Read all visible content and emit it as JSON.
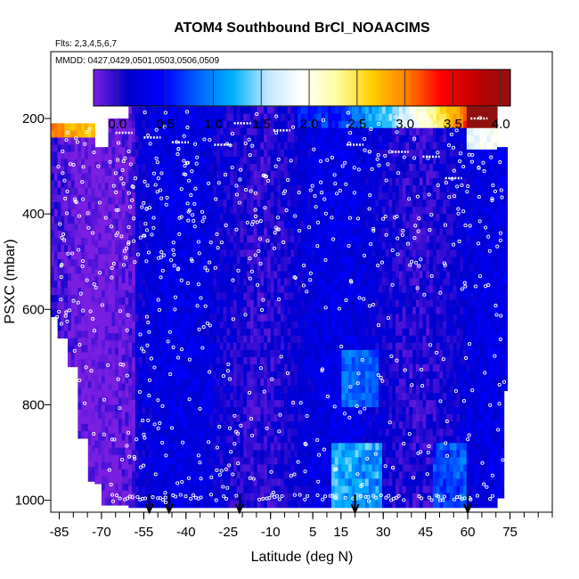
{
  "chart_data": {
    "type": "heatmap",
    "title": "ATOM4 Southbound BrCl_NOAACIMS",
    "subtitle_flights": "Flts: 2,3,4,5,6,7",
    "subtitle_dates": "MMDD: 0427,0429,0501,0503,0506,0509",
    "xlabel": "Latitude (deg N)",
    "ylabel": "PSXC (mbar)",
    "xlim": [
      -88,
      90
    ],
    "ylim": [
      1025,
      60
    ],
    "y_reversed": true,
    "x_ticks": [
      -85,
      -70,
      -55,
      -40,
      -25,
      -10,
      5,
      15,
      30,
      45,
      60,
      75
    ],
    "x_tick_labels": [
      "-85",
      "-70",
      "-55",
      "-40",
      "-25",
      "-10",
      "5",
      "15",
      "30",
      "45",
      "60",
      "75"
    ],
    "y_ticks": [
      200,
      400,
      600,
      800,
      1000
    ],
    "y_tick_labels": [
      "200",
      "400",
      "600",
      "800",
      "1000"
    ],
    "colorbar": {
      "range": [
        -0.25,
        4.1
      ],
      "ticks": [
        0.0,
        0.5,
        1.0,
        1.5,
        2.0,
        2.5,
        3.0,
        3.5,
        4.0
      ],
      "tick_labels": [
        "0.0",
        "0.5",
        "1.0",
        "1.5",
        "2.0",
        "2.5",
        "3.0",
        "3.5",
        "4.0"
      ],
      "colors": [
        "#7a1fe0",
        "#0000cc",
        "#0000ff",
        "#0060ff",
        "#00b0ff",
        "#bfe8ff",
        "#ffffff",
        "#ffffa0",
        "#ffd000",
        "#ff8000",
        "#ff0000",
        "#c00000",
        "#901010"
      ]
    },
    "profile_markers_lat": [
      -53,
      -46,
      -21,
      20,
      60
    ],
    "field_notes": [
      {
        "lat_range": [
          -88,
          -70
        ],
        "p_range": [
          210,
          240
        ],
        "value": 3.4
      },
      {
        "lat_range": [
          35,
          72
        ],
        "p_range": [
          180,
          240
        ],
        "value": 3.2
      },
      {
        "lat_range": [
          15,
          30
        ],
        "p_range": [
          900,
          1000
        ],
        "value": 1.1
      }
    ]
  }
}
